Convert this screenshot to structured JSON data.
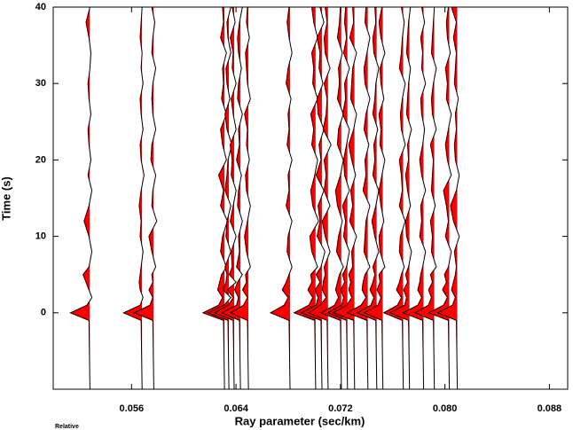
{
  "chart_data": {
    "type": "record-section",
    "xlabel": "Ray parameter (sec/km)",
    "ylabel": "Time (s)",
    "footnote": "Relative",
    "xlim": [
      0.05,
      0.0894
    ],
    "ylim": [
      -10,
      40
    ],
    "xticks": [
      0.056,
      0.064,
      0.072,
      {
        "value": 0.08,
        "label": "0.080"
      },
      0.088
    ],
    "yticks": [
      0,
      10,
      20,
      30,
      40
    ],
    "fill_color": "#ff0000",
    "line_color": "#000000",
    "t": [
      -10,
      -1,
      0,
      1,
      2,
      3,
      4,
      5,
      6,
      8,
      10,
      12,
      14,
      16,
      18,
      20,
      22,
      24,
      26,
      28,
      30,
      32,
      34,
      36,
      38,
      40
    ],
    "traces": [
      {
        "x": 0.05281,
        "values": [
          0,
          0.05,
          1,
          0.15,
          -0.1,
          0.05,
          0.2,
          0.35,
          0.05,
          -0.1,
          0.05,
          0.3,
          0.05,
          -0.1,
          0.1,
          -0.05,
          0.05,
          0.1,
          -0.05,
          0.05,
          0.1,
          0,
          -0.05,
          0.05,
          0.2,
          0
        ]
      },
      {
        "x": 0.05681,
        "values": [
          0,
          0.05,
          0.95,
          0.1,
          -0.05,
          0.1,
          0.15,
          0.1,
          0.05,
          -0.05,
          0.1,
          0.05,
          0.15,
          0.05,
          -0.1,
          0.05,
          0.1,
          -0.05,
          0.05,
          0.1,
          -0.05,
          0.05,
          0,
          0.1,
          0.05,
          0
        ]
      },
      {
        "x": 0.0577,
        "values": [
          0,
          0.05,
          1,
          0.2,
          0.05,
          0.25,
          0.05,
          0.1,
          -0.1,
          0.1,
          0.25,
          -0.15,
          0.1,
          0.05,
          -0.1,
          0.15,
          0.1,
          -0.1,
          0.05,
          0.1,
          0.05,
          -0.1,
          0.1,
          0.05,
          -0.05,
          0.1
        ]
      },
      {
        "x": 0.06312,
        "values": [
          0,
          0.05,
          1.1,
          0.3,
          0.1,
          0.35,
          0.25,
          0.15,
          -0.1,
          0.2,
          0.1,
          -0.15,
          0.2,
          0.05,
          0.3,
          -0.1,
          0.1,
          0.2,
          -0.1,
          0.15,
          0.05,
          0.1,
          -0.1,
          0.2,
          0.05,
          0.1
        ]
      },
      {
        "x": 0.06346,
        "values": [
          0,
          0.05,
          1.05,
          0.25,
          -0.1,
          0.3,
          0.15,
          0.1,
          0.2,
          -0.1,
          0.15,
          0.1,
          -0.1,
          0.2,
          0.1,
          0.05,
          -0.15,
          0.1,
          0.2,
          -0.05,
          0.1,
          0.15,
          -0.1,
          0.05,
          0.1,
          -0.1
        ]
      },
      {
        "x": 0.06386,
        "values": [
          0,
          0.05,
          1,
          0.3,
          0.05,
          0.35,
          -0.1,
          0.25,
          0.1,
          0.15,
          -0.1,
          0.2,
          0.05,
          -0.1,
          0.15,
          0.1,
          0.2,
          -0.1,
          0.05,
          0.15,
          -0.1,
          0.1,
          0.05,
          0.2,
          -0.05,
          0.1
        ]
      },
      {
        "x": 0.06434,
        "values": [
          0,
          0.05,
          0.95,
          0.2,
          0.1,
          0.3,
          0.15,
          -0.1,
          0.2,
          0.05,
          0.1,
          -0.1,
          0.15,
          0.1,
          -0.05,
          0.2,
          0.05,
          0.1,
          -0.1,
          0.15,
          0.1,
          -0.05,
          0.1,
          0.15,
          0.05,
          -0.1
        ]
      },
      {
        "x": 0.06495,
        "values": [
          0,
          0.05,
          0.9,
          0.25,
          0.05,
          0.3,
          0.1,
          0.15,
          -0.1,
          0.1,
          0.2,
          0.05,
          -0.1,
          0.1,
          0.15,
          -0.05,
          0.1,
          0.05,
          0.2,
          -0.1,
          0.05,
          0.1,
          0.15,
          -0.05,
          0.1,
          0.05
        ]
      },
      {
        "x": 0.06814,
        "values": [
          0,
          0.05,
          1,
          0.3,
          0.1,
          0.4,
          0.2,
          0.05,
          -0.1,
          0.15,
          0.1,
          -0.1,
          0.2,
          0.05,
          0.1,
          -0.1,
          0.15,
          0.05,
          0.1,
          -0.05,
          0.2,
          0.1,
          -0.1,
          0.05,
          0.15,
          0.05
        ]
      },
      {
        "x": 0.0701,
        "values": [
          0,
          0.05,
          1.1,
          0.35,
          0.15,
          0.4,
          0.2,
          0.25,
          -0.1,
          0.2,
          0.3,
          -0.15,
          0.15,
          0.25,
          0.05,
          -0.1,
          0.2,
          0.1,
          0.25,
          -0.1,
          0.15,
          0.1,
          0.2,
          -0.1,
          0.1,
          0.2
        ]
      },
      {
        "x": 0.07058,
        "values": [
          0,
          0.05,
          1.05,
          0.3,
          0.2,
          0.35,
          0.1,
          0.3,
          0.05,
          -0.15,
          0.25,
          0.1,
          0.2,
          -0.1,
          0.3,
          0.05,
          0.15,
          -0.1,
          0.2,
          0.25,
          -0.05,
          0.15,
          0.1,
          0.25,
          -0.1,
          0.1
        ]
      },
      {
        "x": 0.07105,
        "values": [
          0,
          0.05,
          1,
          0.4,
          0.1,
          0.3,
          0.25,
          0.15,
          0.2,
          -0.1,
          0.15,
          0.3,
          -0.1,
          0.2,
          0.1,
          0.2,
          -0.15,
          0.25,
          0.1,
          0.05,
          0.2,
          -0.1,
          0.15,
          0.2,
          0.05,
          0.15
        ]
      },
      {
        "x": 0.07207,
        "values": [
          0,
          0.05,
          1.05,
          0.35,
          0.15,
          0.3,
          0.2,
          0.1,
          -0.1,
          0.25,
          0.15,
          -0.05,
          0.2,
          0.3,
          0.05,
          -0.1,
          0.2,
          0.15,
          -0.1,
          0.2,
          0.1,
          0.15,
          -0.05,
          0.2,
          0.1,
          0.05
        ]
      },
      {
        "x": 0.07254,
        "values": [
          0,
          0.05,
          1,
          0.3,
          0.2,
          0.35,
          0.15,
          0.25,
          0.05,
          -0.1,
          0.2,
          0.1,
          0.25,
          -0.1,
          0.15,
          0.2,
          0.05,
          -0.1,
          0.25,
          0.1,
          0.15,
          -0.1,
          0.2,
          0.05,
          0.15,
          0.1
        ]
      },
      {
        "x": 0.07308,
        "values": [
          0,
          0.05,
          1.1,
          0.4,
          0.15,
          0.3,
          0.2,
          0.3,
          0.1,
          0.15,
          -0.1,
          0.25,
          0.1,
          0.2,
          -0.05,
          0.15,
          0.3,
          0.05,
          -0.1,
          0.2,
          0.15,
          0.1,
          -0.1,
          0.25,
          0.05,
          0.1
        ]
      },
      {
        "x": 0.0741,
        "values": [
          0,
          0.05,
          1.05,
          0.35,
          0.1,
          0.3,
          0.25,
          0.15,
          -0.1,
          0.2,
          0.15,
          0.1,
          -0.1,
          0.25,
          0.1,
          0.15,
          -0.05,
          0.2,
          0.1,
          -0.1,
          0.15,
          0.2,
          0.05,
          -0.1,
          0.15,
          0.1
        ]
      },
      {
        "x": 0.07478,
        "values": [
          0,
          0.05,
          1,
          0.3,
          0.15,
          0.35,
          0.2,
          0.1,
          0.2,
          -0.1,
          0.1,
          0.25,
          0.05,
          -0.1,
          0.2,
          0.1,
          0.15,
          -0.05,
          0.2,
          0.1,
          0.05,
          -0.1,
          0.15,
          0.2,
          0.05,
          0.1
        ]
      },
      {
        "x": 0.07525,
        "values": [
          0,
          0.05,
          0.95,
          0.25,
          0.1,
          0.3,
          0.15,
          0.2,
          -0.1,
          0.15,
          0.2,
          -0.05,
          0.1,
          0.2,
          0.05,
          -0.1,
          0.15,
          0.1,
          0.2,
          -0.05,
          0.1,
          0.15,
          -0.1,
          0.1,
          0.2,
          0.05
        ]
      },
      {
        "x": 0.07681,
        "values": [
          0,
          0.05,
          1,
          0.3,
          0.1,
          0.35,
          0.2,
          0.1,
          -0.05,
          0.2,
          0.15,
          -0.1,
          0.2,
          0.05,
          0.1,
          0.2,
          -0.1,
          0.1,
          0.15,
          0.05,
          -0.1,
          0.2,
          0.1,
          0.05,
          -0.05,
          0.1
        ]
      },
      {
        "x": 0.07729,
        "values": [
          0,
          0.05,
          1,
          0.25,
          0.15,
          0.3,
          0.1,
          0.2,
          0.05,
          -0.1,
          0.15,
          0.2,
          -0.05,
          0.1,
          0.2,
          0.05,
          0.1,
          -0.1,
          0.15,
          0.1,
          0.05,
          -0.05,
          0.15,
          0.1,
          0.05,
          -0.05
        ]
      },
      {
        "x": 0.07837,
        "values": [
          0,
          0.05,
          1.05,
          0.3,
          0.1,
          0.3,
          0.2,
          0.15,
          0.05,
          -0.1,
          0.2,
          0.1,
          0.15,
          -0.1,
          0.1,
          0.2,
          0.05,
          -0.05,
          0.1,
          0.15,
          -0.1,
          0.1,
          0.05,
          0.15,
          -0.05,
          0.1
        ]
      },
      {
        "x": 0.07919,
        "values": [
          0,
          0.05,
          1,
          0.3,
          0.15,
          0.3,
          0.1,
          0.2,
          -0.1,
          0.15,
          0.1,
          0.2,
          -0.05,
          0.15,
          0.1,
          0.05,
          0.2,
          -0.1,
          0.1,
          0.15,
          0.05,
          -0.1,
          0.15,
          0.1,
          0.05,
          0
        ]
      },
      {
        "x": 0.08034,
        "values": [
          0,
          0.05,
          1.05,
          0.3,
          0.1,
          0.35,
          0.15,
          0.25,
          0.05,
          -0.1,
          0.2,
          0.05,
          0.15,
          0.3,
          -0.1,
          0.1,
          0.2,
          0.05,
          -0.1,
          0.15,
          0.1,
          0.2,
          -0.05,
          0.1,
          0.15,
          0.05
        ]
      },
      {
        "x": 0.08095,
        "values": [
          0,
          0.05,
          1,
          0.25,
          0.1,
          0.3,
          0.2,
          0.1,
          0.05,
          0.15,
          -0.1,
          0.2,
          0.35,
          0.05,
          -0.1,
          0.1,
          0.15,
          0.05,
          0.1,
          -0.05,
          0.15,
          0.1,
          0.05,
          0.2,
          0.05,
          0.3
        ]
      }
    ]
  }
}
